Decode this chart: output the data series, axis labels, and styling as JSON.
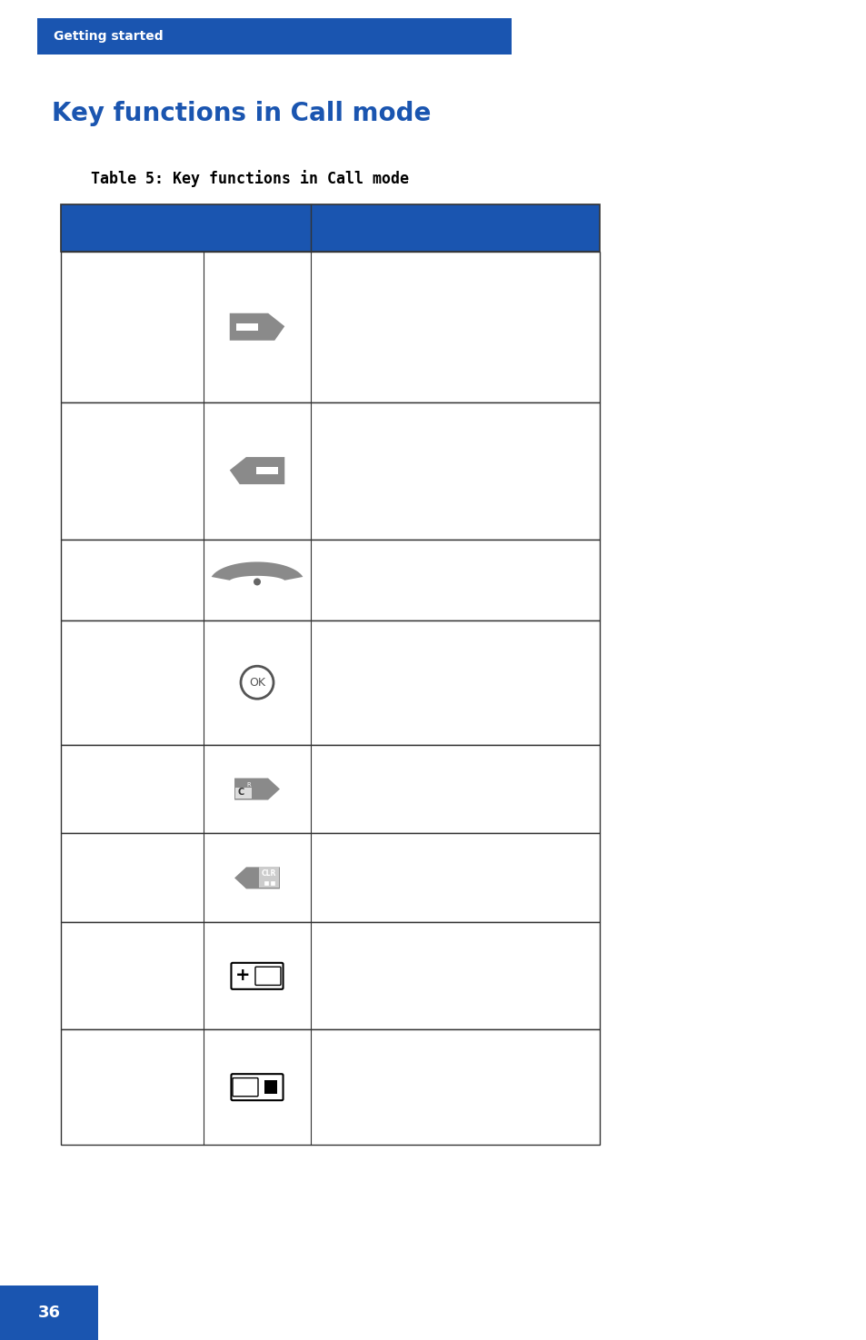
{
  "page_bg": "#ffffff",
  "header_bar_color": "#1a55b0",
  "header_text": "Getting started",
  "header_text_color": "#ffffff",
  "header_text_size": 10,
  "title_text": "Key functions in Call mode",
  "title_text_color": "#1a55b0",
  "title_text_size": 20,
  "table_title": "Table 5: Key functions in Call mode",
  "table_title_size": 12,
  "table_title_color": "#000000",
  "table_header_color": "#1a55b0",
  "icon_color": "#8a8a8a",
  "footer_box_color": "#1a55b0",
  "footer_text": "36",
  "footer_text_color": "#ffffff"
}
